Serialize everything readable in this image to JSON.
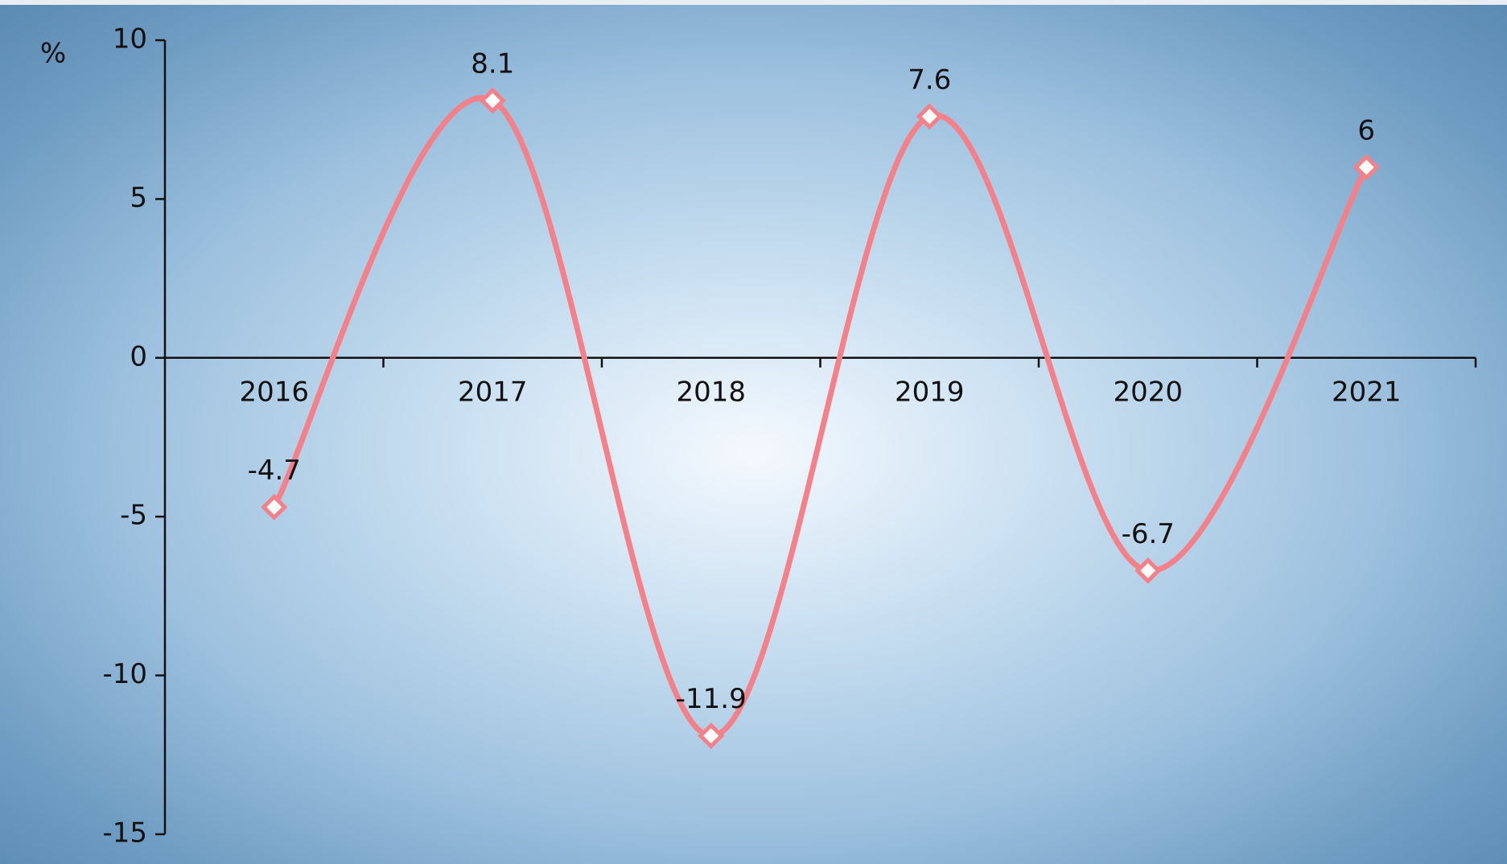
{
  "chart_data": {
    "type": "line",
    "y_label": "%",
    "categories": [
      "2016",
      "2017",
      "2018",
      "2019",
      "2020",
      "2021"
    ],
    "values": [
      -4.7,
      8.1,
      -11.9,
      7.6,
      -6.7,
      6
    ],
    "color": "#f4808a",
    "data_labels": true,
    "ylim": [
      -15,
      10
    ],
    "yticks": [
      -15,
      -10,
      -5,
      0,
      5,
      10
    ],
    "grid": false
  }
}
